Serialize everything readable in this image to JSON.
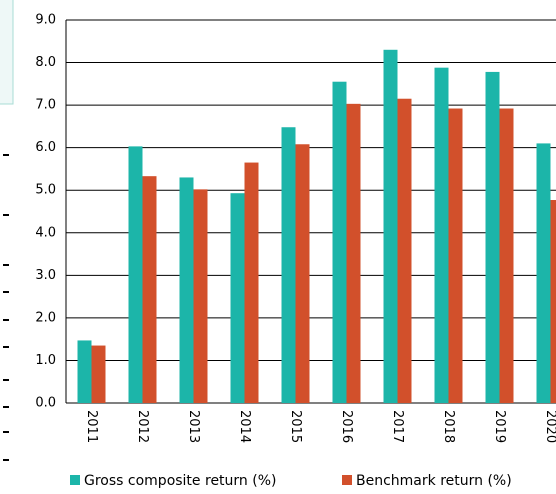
{
  "chart_data": {
    "type": "bar",
    "categories": [
      "2011",
      "2012",
      "2013",
      "2014",
      "2015",
      "2016",
      "2017",
      "2018",
      "2019",
      "2020"
    ],
    "series": [
      {
        "name": "Gross composite return (%)",
        "color": "#1cb5a9",
        "values": [
          1.47,
          6.03,
          5.3,
          4.93,
          6.48,
          7.55,
          8.3,
          7.88,
          7.78,
          6.1
        ]
      },
      {
        "name": "Benchmark return (%)",
        "color": "#d2502b",
        "values": [
          1.35,
          5.33,
          5.02,
          5.65,
          6.08,
          7.03,
          7.15,
          6.92,
          6.92,
          4.77
        ]
      }
    ],
    "ylim": [
      0,
      9
    ],
    "yticks": [
      {
        "value": 0,
        "label": "0.0"
      },
      {
        "value": 1,
        "label": "1.0"
      },
      {
        "value": 2,
        "label": "2.0"
      },
      {
        "value": 3,
        "label": "3.0"
      },
      {
        "value": 4,
        "label": "4.0"
      },
      {
        "value": 5,
        "label": "5.0"
      },
      {
        "value": 6,
        "label": "6.0"
      },
      {
        "value": 7,
        "label": "7.0"
      },
      {
        "value": 8,
        "label": "8.0"
      },
      {
        "value": 9,
        "label": "9.0"
      }
    ],
    "grid": true
  }
}
